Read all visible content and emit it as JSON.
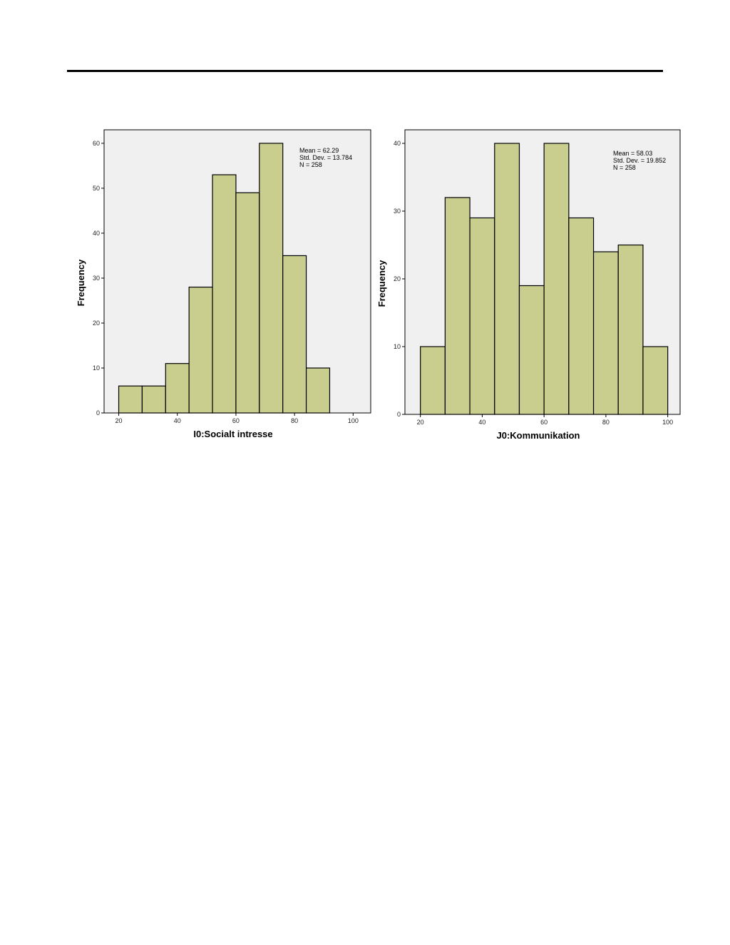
{
  "chart_data": [
    {
      "type": "bar",
      "subtype": "histogram",
      "xlabel": "I0:Socialt intresse",
      "ylabel": "Frequency",
      "xlim": [
        15,
        106
      ],
      "ylim": [
        0,
        63
      ],
      "xticks": [
        20,
        40,
        60,
        80,
        100
      ],
      "yticks": [
        0,
        10,
        20,
        30,
        40,
        50,
        60
      ],
      "bins": [
        {
          "from": 20,
          "to": 28,
          "count": 6
        },
        {
          "from": 28,
          "to": 36,
          "count": 6
        },
        {
          "from": 36,
          "to": 44,
          "count": 11
        },
        {
          "from": 44,
          "to": 52,
          "count": 28
        },
        {
          "from": 52,
          "to": 60,
          "count": 53
        },
        {
          "from": 60,
          "to": 68,
          "count": 49
        },
        {
          "from": 68,
          "to": 76,
          "count": 60
        },
        {
          "from": 76,
          "to": 84,
          "count": 35
        },
        {
          "from": 84,
          "to": 92,
          "count": 10
        }
      ],
      "stats": [
        "Mean = 62.29",
        "Std. Dev. = 13.784",
        "N = 258"
      ],
      "bar_color": "#c9ce8f",
      "background_color": "#f0f0f0",
      "grid": false
    },
    {
      "type": "bar",
      "subtype": "histogram",
      "xlabel": "J0:Kommunikation",
      "ylabel": "Frequency",
      "xlim": [
        15,
        104
      ],
      "ylim": [
        0,
        42
      ],
      "xticks": [
        20,
        40,
        60,
        80,
        100
      ],
      "yticks": [
        0,
        10,
        20,
        30,
        40
      ],
      "bins": [
        {
          "from": 20,
          "to": 28,
          "count": 10
        },
        {
          "from": 28,
          "to": 36,
          "count": 32
        },
        {
          "from": 36,
          "to": 44,
          "count": 29
        },
        {
          "from": 44,
          "to": 52,
          "count": 40
        },
        {
          "from": 52,
          "to": 60,
          "count": 19
        },
        {
          "from": 60,
          "to": 68,
          "count": 40
        },
        {
          "from": 68,
          "to": 76,
          "count": 29
        },
        {
          "from": 76,
          "to": 84,
          "count": 24
        },
        {
          "from": 84,
          "to": 92,
          "count": 25
        },
        {
          "from": 92,
          "to": 100,
          "count": 10
        }
      ],
      "stats": [
        "Mean = 58.03",
        "Std. Dev. = 19.852",
        "N = 258"
      ],
      "bar_color": "#c9ce8f",
      "background_color": "#f0f0f0",
      "grid": false
    }
  ]
}
